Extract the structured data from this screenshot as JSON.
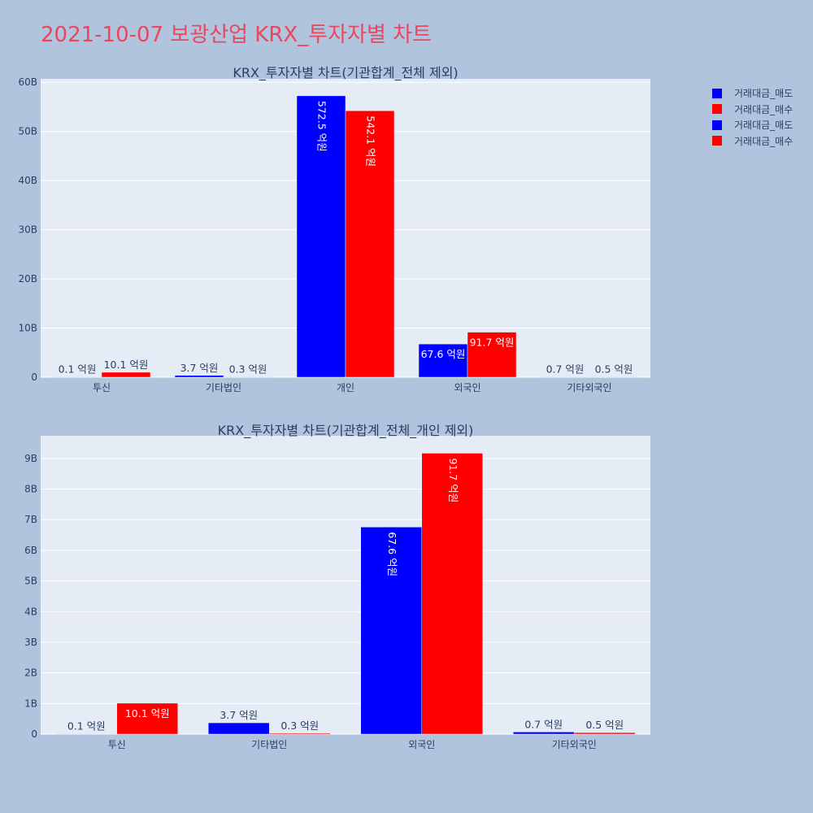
{
  "title": "2021-10-07 보광산업 KRX_투자자별 차트",
  "legend": [
    {
      "name": "거래대금_매도",
      "color": "#0000ff"
    },
    {
      "name": "거래대금_매수",
      "color": "#ff0000"
    },
    {
      "name": "거래대금_매도",
      "color": "#0000ff"
    },
    {
      "name": "거래대금_매수",
      "color": "#ff0000"
    }
  ],
  "chart_data": [
    {
      "type": "bar",
      "title": "KRX_투자자별 차트(기관합계_전체 제외)",
      "categories": [
        "투신",
        "기타법인",
        "개인",
        "외국인",
        "기타외국인"
      ],
      "ylim": [
        0,
        60.7
      ],
      "yticks": [
        0,
        10,
        20,
        30,
        40,
        50,
        60
      ],
      "ytick_labels": [
        "0",
        "10B",
        "20B",
        "30B",
        "40B",
        "50B",
        "60B"
      ],
      "grid": true,
      "legend_position": "top-right",
      "series": [
        {
          "name": "거래대금_매도",
          "color": "#0000ff",
          "values": [
            0.01,
            0.37,
            57.25,
            6.76,
            0.07
          ],
          "labels": [
            "0.1 억원",
            "3.7 억원",
            "572.5 억원",
            "67.6 억원",
            "0.7 억원"
          ]
        },
        {
          "name": "거래대금_매수",
          "color": "#ff0000",
          "values": [
            1.01,
            0.03,
            54.21,
            9.17,
            0.05
          ],
          "labels": [
            "10.1 억원",
            "0.3 억원",
            "542.1 억원",
            "91.7 억원",
            "0.5 억원"
          ]
        }
      ]
    },
    {
      "type": "bar",
      "title": "KRX_투자자별 차트(기관합계_전체_개인 제외)",
      "categories": [
        "투신",
        "기타법인",
        "외국인",
        "기타외국인"
      ],
      "ylim": [
        0,
        9.74
      ],
      "yticks": [
        0,
        1,
        2,
        3,
        4,
        5,
        6,
        7,
        8,
        9
      ],
      "ytick_labels": [
        "0",
        "1B",
        "2B",
        "3B",
        "4B",
        "5B",
        "6B",
        "7B",
        "8B",
        "9B"
      ],
      "grid": true,
      "series": [
        {
          "name": "거래대금_매도",
          "color": "#0000ff",
          "values": [
            0.01,
            0.37,
            6.76,
            0.07
          ],
          "labels": [
            "0.1 억원",
            "3.7 억원",
            "67.6 억원",
            "0.7 억원"
          ]
        },
        {
          "name": "거래대금_매수",
          "color": "#ff0000",
          "values": [
            1.01,
            0.03,
            9.17,
            0.05
          ],
          "labels": [
            "10.1 억원",
            "0.3 억원",
            "91.7 억원",
            "0.5 억원"
          ]
        }
      ]
    }
  ]
}
